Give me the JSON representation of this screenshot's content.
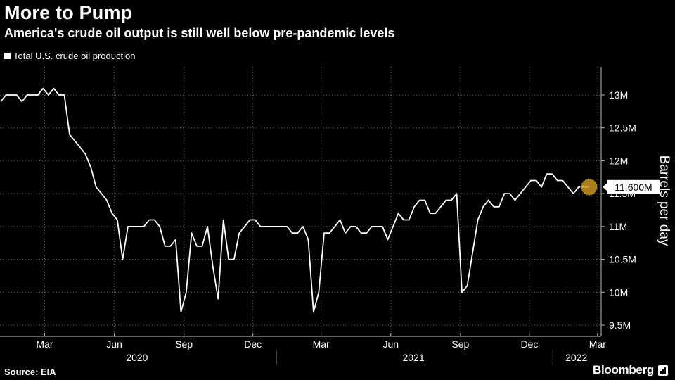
{
  "header": {
    "title": "More to Pump",
    "subtitle": "America's crude oil output is still well below pre-pandemic levels"
  },
  "footer": {
    "source": "Source: EIA",
    "brand": "Bloomberg",
    "brand_icon": "chart-bars-icon"
  },
  "colors": {
    "background": "#000000",
    "line": "#ffffff",
    "grid": "#6e6e6e",
    "marker": "#c8961e"
  },
  "chart_data": {
    "type": "line",
    "title": "More to Pump",
    "subtitle": "America's crude oil output is still well below pre-pandemic levels",
    "ylabel": "Barrels per day",
    "xlabel": "",
    "ylim": [
      9.4,
      13.5
    ],
    "y_unit": "M",
    "legend": "top-left",
    "grid": true,
    "last_value_label": "11.600M",
    "y_ticks": [
      {
        "value": 9.5,
        "label": "9.5M"
      },
      {
        "value": 10,
        "label": "10M"
      },
      {
        "value": 10.5,
        "label": "10.5M"
      },
      {
        "value": 11,
        "label": "11M"
      },
      {
        "value": 11.5,
        "label": "11.5M"
      },
      {
        "value": 12,
        "label": "12M"
      },
      {
        "value": 12.5,
        "label": "12.5M"
      },
      {
        "value": 13,
        "label": "13M"
      }
    ],
    "x_ticks": [
      {
        "date": "2020-03-01",
        "label": "Mar"
      },
      {
        "date": "2020-06-01",
        "label": "Jun"
      },
      {
        "date": "2020-09-01",
        "label": "Sep"
      },
      {
        "date": "2020-12-01",
        "label": "Dec"
      },
      {
        "date": "2021-03-01",
        "label": "Mar"
      },
      {
        "date": "2021-06-01",
        "label": "Jun"
      },
      {
        "date": "2021-09-01",
        "label": "Sep"
      },
      {
        "date": "2021-12-01",
        "label": "Dec"
      },
      {
        "date": "2022-03-01",
        "label": "Mar"
      }
    ],
    "year_labels": [
      {
        "date": "2020-07-01",
        "label": "2020"
      },
      {
        "date": "2021-07-01",
        "label": "2021"
      },
      {
        "date": "2022-02-01",
        "label": "2022"
      }
    ],
    "year_dividers": [
      "2021-01-01",
      "2022-01-01"
    ],
    "series": [
      {
        "name": "Total U.S. crude oil production",
        "points": [
          [
            "2020-01-03",
            12.9
          ],
          [
            "2020-01-10",
            13.0
          ],
          [
            "2020-01-17",
            13.0
          ],
          [
            "2020-01-24",
            13.0
          ],
          [
            "2020-01-31",
            12.9
          ],
          [
            "2020-02-07",
            13.0
          ],
          [
            "2020-02-14",
            13.0
          ],
          [
            "2020-02-21",
            13.0
          ],
          [
            "2020-02-28",
            13.1
          ],
          [
            "2020-03-06",
            13.0
          ],
          [
            "2020-03-13",
            13.1
          ],
          [
            "2020-03-20",
            13.0
          ],
          [
            "2020-03-27",
            13.0
          ],
          [
            "2020-04-03",
            12.4
          ],
          [
            "2020-04-10",
            12.3
          ],
          [
            "2020-04-17",
            12.2
          ],
          [
            "2020-04-24",
            12.1
          ],
          [
            "2020-05-01",
            11.9
          ],
          [
            "2020-05-08",
            11.6
          ],
          [
            "2020-05-15",
            11.5
          ],
          [
            "2020-05-22",
            11.4
          ],
          [
            "2020-05-29",
            11.2
          ],
          [
            "2020-06-05",
            11.1
          ],
          [
            "2020-06-12",
            10.5
          ],
          [
            "2020-06-19",
            11.0
          ],
          [
            "2020-06-26",
            11.0
          ],
          [
            "2020-07-03",
            11.0
          ],
          [
            "2020-07-10",
            11.0
          ],
          [
            "2020-07-17",
            11.1
          ],
          [
            "2020-07-24",
            11.1
          ],
          [
            "2020-07-31",
            11.0
          ],
          [
            "2020-08-07",
            10.7
          ],
          [
            "2020-08-14",
            10.7
          ],
          [
            "2020-08-21",
            10.8
          ],
          [
            "2020-08-28",
            9.7
          ],
          [
            "2020-09-04",
            10.0
          ],
          [
            "2020-09-11",
            10.9
          ],
          [
            "2020-09-18",
            10.7
          ],
          [
            "2020-09-25",
            10.7
          ],
          [
            "2020-10-02",
            11.0
          ],
          [
            "2020-10-09",
            10.4
          ],
          [
            "2020-10-16",
            9.9
          ],
          [
            "2020-10-23",
            11.1
          ],
          [
            "2020-10-30",
            10.5
          ],
          [
            "2020-11-06",
            10.5
          ],
          [
            "2020-11-13",
            10.9
          ],
          [
            "2020-11-20",
            11.0
          ],
          [
            "2020-11-27",
            11.1
          ],
          [
            "2020-12-04",
            11.1
          ],
          [
            "2020-12-11",
            11.0
          ],
          [
            "2020-12-18",
            11.0
          ],
          [
            "2020-12-25",
            11.0
          ],
          [
            "2021-01-01",
            11.0
          ],
          [
            "2021-01-08",
            11.0
          ],
          [
            "2021-01-15",
            11.0
          ],
          [
            "2021-01-22",
            10.9
          ],
          [
            "2021-01-29",
            10.9
          ],
          [
            "2021-02-05",
            11.0
          ],
          [
            "2021-02-12",
            10.8
          ],
          [
            "2021-02-19",
            9.7
          ],
          [
            "2021-02-26",
            10.0
          ],
          [
            "2021-03-05",
            10.9
          ],
          [
            "2021-03-12",
            10.9
          ],
          [
            "2021-03-19",
            11.0
          ],
          [
            "2021-03-26",
            11.1
          ],
          [
            "2021-04-02",
            10.9
          ],
          [
            "2021-04-09",
            11.0
          ],
          [
            "2021-04-16",
            11.0
          ],
          [
            "2021-04-23",
            10.9
          ],
          [
            "2021-04-30",
            10.9
          ],
          [
            "2021-05-07",
            11.0
          ],
          [
            "2021-05-14",
            11.0
          ],
          [
            "2021-05-21",
            11.0
          ],
          [
            "2021-05-28",
            10.8
          ],
          [
            "2021-06-04",
            11.0
          ],
          [
            "2021-06-11",
            11.2
          ],
          [
            "2021-06-18",
            11.1
          ],
          [
            "2021-06-25",
            11.1
          ],
          [
            "2021-07-02",
            11.3
          ],
          [
            "2021-07-09",
            11.4
          ],
          [
            "2021-07-16",
            11.4
          ],
          [
            "2021-07-23",
            11.2
          ],
          [
            "2021-07-30",
            11.2
          ],
          [
            "2021-08-06",
            11.3
          ],
          [
            "2021-08-13",
            11.4
          ],
          [
            "2021-08-20",
            11.4
          ],
          [
            "2021-08-27",
            11.5
          ],
          [
            "2021-09-03",
            10.0
          ],
          [
            "2021-09-10",
            10.1
          ],
          [
            "2021-09-17",
            10.6
          ],
          [
            "2021-09-24",
            11.1
          ],
          [
            "2021-10-01",
            11.3
          ],
          [
            "2021-10-08",
            11.4
          ],
          [
            "2021-10-15",
            11.3
          ],
          [
            "2021-10-22",
            11.3
          ],
          [
            "2021-10-29",
            11.5
          ],
          [
            "2021-11-05",
            11.5
          ],
          [
            "2021-11-12",
            11.4
          ],
          [
            "2021-11-19",
            11.5
          ],
          [
            "2021-11-26",
            11.6
          ],
          [
            "2021-12-03",
            11.7
          ],
          [
            "2021-12-10",
            11.7
          ],
          [
            "2021-12-17",
            11.6
          ],
          [
            "2021-12-24",
            11.8
          ],
          [
            "2021-12-31",
            11.8
          ],
          [
            "2022-01-07",
            11.7
          ],
          [
            "2022-01-14",
            11.7
          ],
          [
            "2022-01-21",
            11.6
          ],
          [
            "2022-01-28",
            11.5
          ],
          [
            "2022-02-04",
            11.6
          ],
          [
            "2022-02-11",
            11.6
          ],
          [
            "2022-02-18",
            11.6
          ]
        ]
      }
    ]
  }
}
